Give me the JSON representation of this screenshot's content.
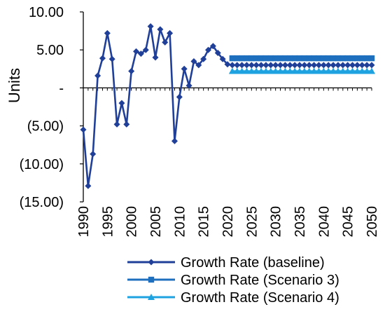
{
  "chart_data": {
    "type": "line",
    "ylabel": "Units",
    "xlabel": "",
    "ylim": [
      -15,
      10
    ],
    "xlim": [
      1990,
      2050
    ],
    "y_ticks": [
      {
        "v": 10,
        "label": "10.00"
      },
      {
        "v": 5,
        "label": "5.00"
      },
      {
        "v": 0,
        "label": "-"
      },
      {
        "v": -5,
        "label": "(5.00)"
      },
      {
        "v": -10,
        "label": "(10.00)"
      },
      {
        "v": -15,
        "label": "(15.00)"
      }
    ],
    "x_ticks": [
      "1990",
      "1995",
      "2000",
      "2005",
      "2010",
      "2015",
      "2020",
      "2025",
      "2030",
      "2035",
      "2040",
      "2045",
      "2050"
    ],
    "grid": false,
    "legend_position": "bottom",
    "series": [
      {
        "name": "Growth Rate (baseline)",
        "color": "#1f3f99",
        "marker": "diamond",
        "x": [
          1990,
          1991,
          1992,
          1993,
          1994,
          1995,
          1996,
          1997,
          1998,
          1999,
          2000,
          2001,
          2002,
          2003,
          2004,
          2005,
          2006,
          2007,
          2008,
          2009,
          2010,
          2011,
          2012,
          2013,
          2014,
          2015,
          2016,
          2017,
          2018,
          2019,
          2020,
          2021,
          2022,
          2023,
          2024,
          2025,
          2026,
          2027,
          2028,
          2029,
          2030,
          2031,
          2032,
          2033,
          2034,
          2035,
          2036,
          2037,
          2038,
          2039,
          2040,
          2041,
          2042,
          2043,
          2044,
          2045,
          2046,
          2047,
          2048,
          2049,
          2050
        ],
        "y": [
          -5.5,
          -12.9,
          -8.7,
          1.6,
          3.9,
          7.2,
          3.8,
          -4.8,
          -2.0,
          -4.8,
          2.2,
          4.8,
          4.5,
          5.0,
          8.1,
          4.0,
          7.7,
          6.0,
          7.2,
          -7.0,
          -1.2,
          2.5,
          0.3,
          3.5,
          3.0,
          3.8,
          5.0,
          5.5,
          4.6,
          3.8,
          3.1,
          3.0,
          3.0,
          3.0,
          3.0,
          3.0,
          3.0,
          3.0,
          3.0,
          3.0,
          3.0,
          3.0,
          3.0,
          3.0,
          3.0,
          3.0,
          3.0,
          3.0,
          3.0,
          3.0,
          3.0,
          3.0,
          3.0,
          3.0,
          3.0,
          3.0,
          3.0,
          3.0,
          3.0,
          3.0,
          3.0
        ]
      },
      {
        "name": "Growth Rate (Scenario 3)",
        "color": "#1f6fbf",
        "marker": "square",
        "x": [
          2021,
          2022,
          2023,
          2024,
          2025,
          2026,
          2027,
          2028,
          2029,
          2030,
          2031,
          2032,
          2033,
          2034,
          2035,
          2036,
          2037,
          2038,
          2039,
          2040,
          2041,
          2042,
          2043,
          2044,
          2045,
          2046,
          2047,
          2048,
          2049,
          2050
        ],
        "y": [
          3.9,
          3.9,
          3.9,
          3.9,
          3.9,
          3.9,
          3.9,
          3.9,
          3.9,
          3.9,
          3.9,
          3.9,
          3.9,
          3.9,
          3.9,
          3.9,
          3.9,
          3.9,
          3.9,
          3.9,
          3.9,
          3.9,
          3.9,
          3.9,
          3.9,
          3.9,
          3.9,
          3.9,
          3.9,
          3.9
        ]
      },
      {
        "name": "Growth Rate (Scenario 4)",
        "color": "#1fa3e0",
        "marker": "triangle",
        "x": [
          2021,
          2022,
          2023,
          2024,
          2025,
          2026,
          2027,
          2028,
          2029,
          2030,
          2031,
          2032,
          2033,
          2034,
          2035,
          2036,
          2037,
          2038,
          2039,
          2040,
          2041,
          2042,
          2043,
          2044,
          2045,
          2046,
          2047,
          2048,
          2049,
          2050
        ],
        "y": [
          2.2,
          2.2,
          2.2,
          2.2,
          2.2,
          2.2,
          2.2,
          2.2,
          2.2,
          2.2,
          2.2,
          2.2,
          2.2,
          2.2,
          2.2,
          2.2,
          2.2,
          2.2,
          2.2,
          2.2,
          2.2,
          2.2,
          2.2,
          2.2,
          2.2,
          2.2,
          2.2,
          2.2,
          2.2,
          2.2
        ]
      }
    ]
  }
}
